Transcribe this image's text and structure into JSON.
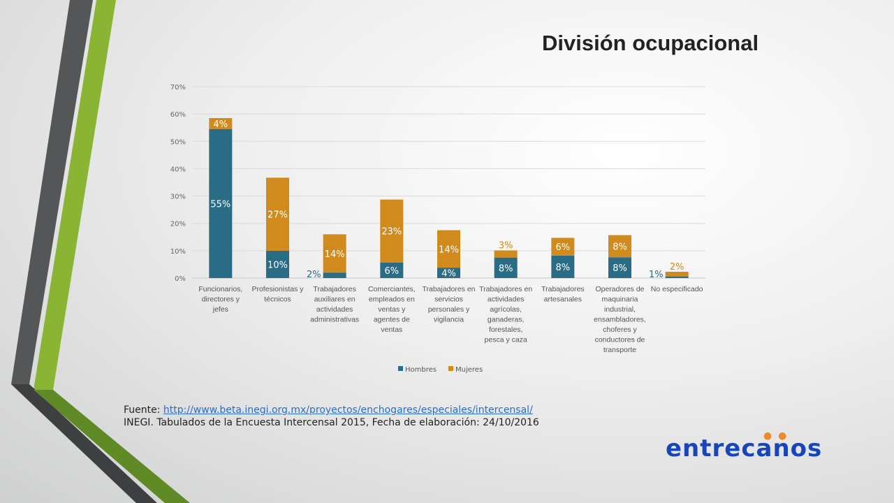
{
  "title": "División ocupacional",
  "source": {
    "label": "Fuente:",
    "link": "http://www.beta.inegi.org.mx/proyectos/enchogares/especiales/intercensal/",
    "line2": "INEGI. Tabulados de la Encuesta Intercensal 2015, Fecha de elaboración:  24/10/2016"
  },
  "logo": "entrecanos",
  "colors": {
    "hombres": "#2a6b86",
    "mujeres": "#d18a1c"
  },
  "chart_data": {
    "type": "bar",
    "stacked": true,
    "title": "",
    "xlabel": "",
    "ylabel": "",
    "ylim": [
      0,
      70
    ],
    "yticks": [
      "0%",
      "10%",
      "20%",
      "30%",
      "40%",
      "50%",
      "60%",
      "70%"
    ],
    "grid": true,
    "legend": "bottom",
    "categories": [
      [
        "Funcionarios,",
        "directores y",
        "jefes"
      ],
      [
        "Profesionistas y",
        "técnicos"
      ],
      [
        "Trabajadores",
        "auxiliares en",
        "actividades",
        "administrativas"
      ],
      [
        "Comerciantes,",
        "empleados en",
        "ventas y",
        "agentes de",
        "ventas"
      ],
      [
        "Trabajadores en",
        "servicios",
        "personales y",
        "vigilancia"
      ],
      [
        "Trabajadores en",
        "actividades",
        "agrícolas,",
        "ganaderas,",
        "forestales,",
        "pesca y caza"
      ],
      [
        "Trabajadores",
        "artesanales"
      ],
      [
        "Operadores de",
        "maquinaria",
        "industrial,",
        "ensambladores,",
        "choferes y",
        "conductores de",
        "transporte"
      ],
      [
        "No especificado"
      ]
    ],
    "series": [
      {
        "name": "Hombres",
        "values": [
          54.5,
          10,
          2,
          5.7,
          3.8,
          7.5,
          8.2,
          7.6,
          0.6
        ],
        "labels": [
          "55%",
          "10%",
          "2%",
          "6%",
          "4%",
          "8%",
          "8%",
          "8%",
          "1%"
        ]
      },
      {
        "name": "Mujeres",
        "values": [
          4,
          26.7,
          14,
          23,
          13.7,
          2.6,
          6.5,
          8.1,
          1.7
        ],
        "labels": [
          "4%",
          "27%",
          "14%",
          "23%",
          "14%",
          "3%",
          "6%",
          "8%",
          "2%"
        ]
      }
    ]
  }
}
